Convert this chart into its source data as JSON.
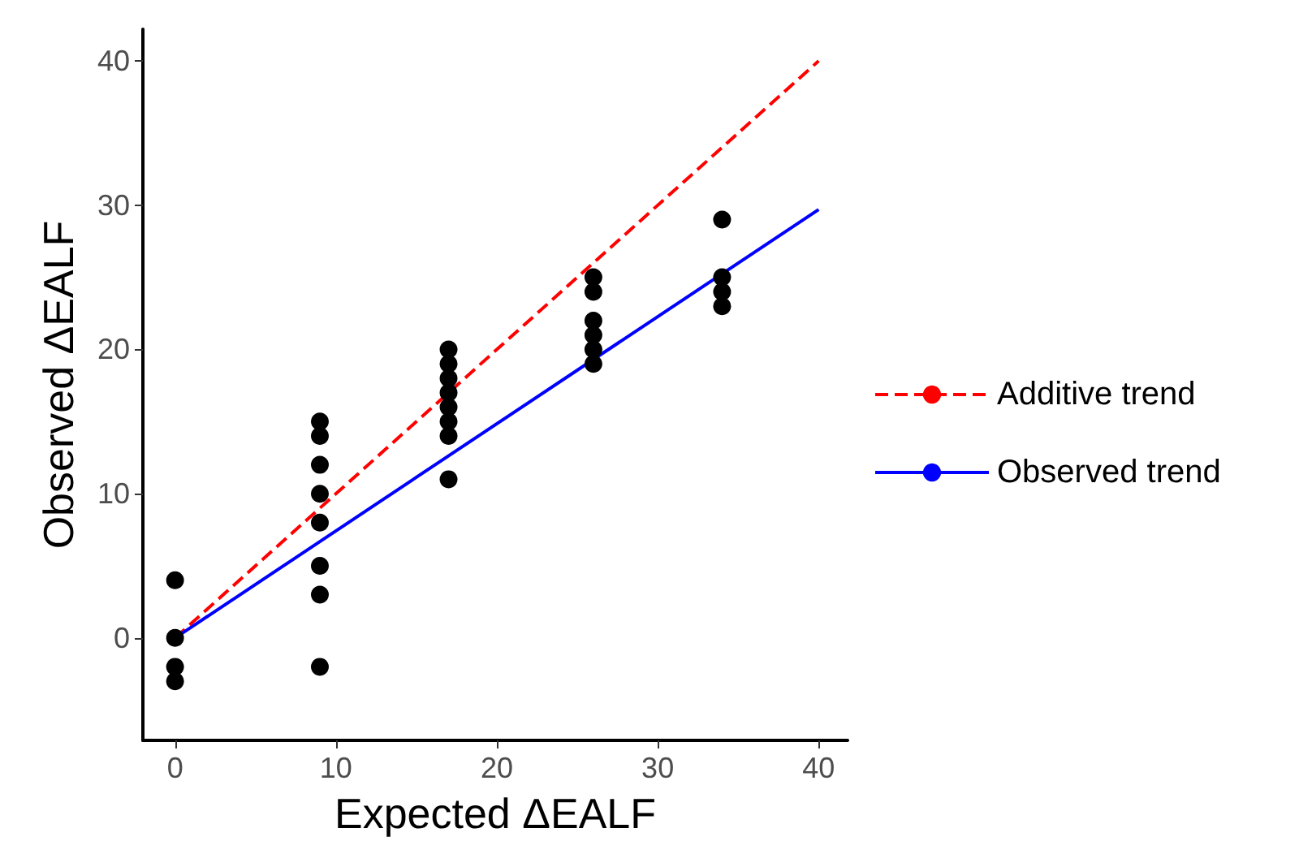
{
  "chart_data": {
    "type": "scatter",
    "xlabel": "Expected ΔEALF",
    "ylabel": "Observed ΔEALF",
    "xlim": [
      -2,
      41.8
    ],
    "xticks": [
      0,
      10,
      20,
      30,
      40
    ],
    "ylim": [
      -7.1,
      42.2
    ],
    "yticks": [
      0,
      10,
      20,
      30,
      40
    ],
    "grid": false,
    "legend": "right",
    "series": [
      {
        "marker": "circle",
        "color": "#000000",
        "x": [
          0,
          0,
          0,
          0,
          9,
          9,
          9,
          9,
          9,
          9,
          9,
          9,
          17,
          17,
          17,
          17,
          17,
          17,
          17,
          17,
          26,
          26,
          26,
          26,
          26,
          26,
          34,
          34,
          34,
          34
        ],
        "values": [
          4,
          0,
          -2,
          -3,
          15,
          14,
          12,
          10,
          8,
          5,
          3,
          -2,
          20,
          19,
          18,
          17,
          16,
          15,
          14,
          11,
          25,
          24,
          22,
          21,
          20,
          19,
          29,
          25,
          24,
          23
        ]
      },
      {
        "type": "line",
        "name": "Additive trend",
        "color": "#ff0000",
        "line_style": "dashed",
        "x": [
          0,
          40
        ],
        "values": [
          0,
          40
        ]
      },
      {
        "type": "line",
        "name": "Observed trend",
        "color": "#0000ff",
        "line_style": "solid",
        "x": [
          0,
          40
        ],
        "values": [
          0,
          29.7
        ]
      }
    ]
  }
}
